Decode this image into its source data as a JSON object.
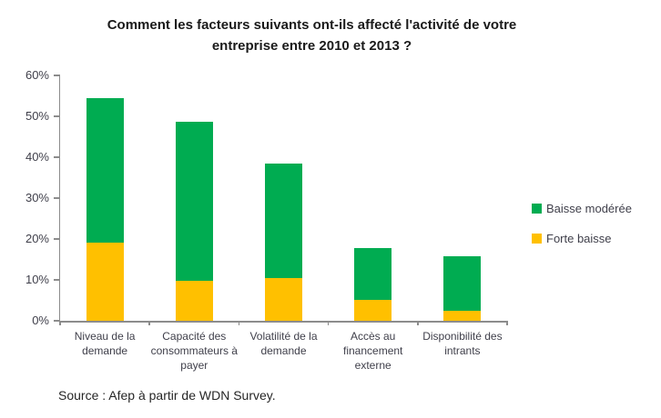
{
  "title": {
    "line1": "Comment les facteurs suivants ont-ils affecté l'activité de votre",
    "line2": "entreprise entre 2010 et 2013 ?"
  },
  "source": "Source : Afep à partir de WDN Survey.",
  "chart_data": {
    "type": "bar",
    "stacked": true,
    "title": "Comment les facteurs suivants ont-ils affecté l'activité de votre entreprise entre 2010 et 2013 ?",
    "categories": [
      "Niveau de la demande",
      "Capacité des consommateurs à payer",
      "Volatilité de la demande",
      "Accès au financement externe",
      "Disponibilité des intrants"
    ],
    "series": [
      {
        "name": "Forte baisse",
        "color": "#FFC000",
        "values": [
          19.2,
          9.8,
          10.4,
          5.2,
          2.4
        ]
      },
      {
        "name": "Baisse modérée",
        "color": "#00AC51",
        "values": [
          35.3,
          38.9,
          28.1,
          12.6,
          13.4
        ]
      }
    ],
    "ylim": [
      0,
      60
    ],
    "yticks": [
      "0%",
      "10%",
      "20%",
      "30%",
      "40%",
      "50%",
      "60%"
    ],
    "grid": false,
    "legend_position": "right",
    "legend": [
      {
        "label": "Baisse modérée",
        "color": "#00AC51"
      },
      {
        "label": "Forte baisse",
        "color": "#FFC000"
      }
    ],
    "axis_color": "#8c8c8c",
    "label_color": "#3f3f4a"
  }
}
